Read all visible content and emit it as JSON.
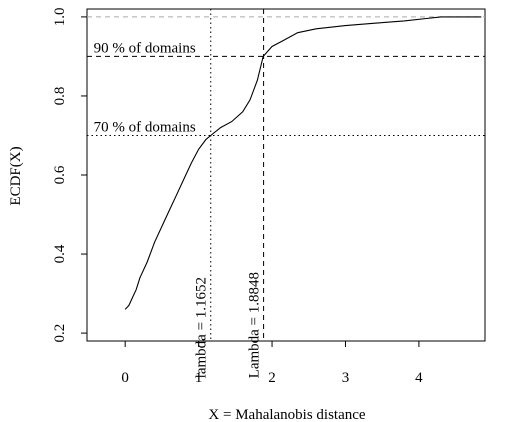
{
  "chart_data": {
    "type": "line",
    "xlabel": "X = Mahalanobis distance",
    "ylabel": "ECDF(X)",
    "xlim": [
      -0.52,
      4.9
    ],
    "ylim": [
      0.18,
      1.02
    ],
    "x_ticks": [
      0,
      1,
      2,
      3,
      4
    ],
    "x_tick_labels": [
      "0",
      "1",
      "2",
      "3",
      "4"
    ],
    "y_ticks": [
      0.2,
      0.4,
      0.6,
      0.8,
      1.0
    ],
    "y_tick_labels": [
      "0.2",
      "0.4",
      "0.6",
      "0.8",
      "1.0"
    ],
    "grid": false,
    "series": [
      {
        "points": [
          [
            0.0,
            0.26
          ],
          [
            0.05,
            0.27
          ],
          [
            0.1,
            0.29
          ],
          [
            0.15,
            0.31
          ],
          [
            0.2,
            0.34
          ],
          [
            0.3,
            0.38
          ],
          [
            0.4,
            0.43
          ],
          [
            0.5,
            0.47
          ],
          [
            0.6,
            0.51
          ],
          [
            0.7,
            0.55
          ],
          [
            0.8,
            0.59
          ],
          [
            0.9,
            0.63
          ],
          [
            1.0,
            0.665
          ],
          [
            1.1,
            0.69
          ],
          [
            1.1652,
            0.7
          ],
          [
            1.3,
            0.72
          ],
          [
            1.45,
            0.735
          ],
          [
            1.6,
            0.76
          ],
          [
            1.7,
            0.79
          ],
          [
            1.8,
            0.84
          ],
          [
            1.88,
            0.9
          ],
          [
            2.0,
            0.925
          ],
          [
            2.15,
            0.94
          ],
          [
            2.35,
            0.96
          ],
          [
            2.6,
            0.97
          ],
          [
            3.0,
            0.978
          ],
          [
            3.4,
            0.984
          ],
          [
            3.8,
            0.99
          ],
          [
            4.1,
            0.996
          ],
          [
            4.3,
            1.0
          ],
          [
            4.85,
            1.0
          ]
        ]
      }
    ],
    "reference_lines": {
      "horizontal": [
        {
          "y": 1.0,
          "style": "dashed",
          "color": "#aaaaaa"
        },
        {
          "y": 0.9,
          "style": "dashed",
          "color": "#000000"
        },
        {
          "y": 0.7,
          "style": "dotted",
          "color": "#000000"
        }
      ],
      "vertical": [
        {
          "x": 1.1652,
          "style": "dotted",
          "color": "#000000"
        },
        {
          "x": 1.8848,
          "style": "dashed",
          "color": "#000000"
        }
      ]
    },
    "annotations": [
      {
        "text": "90 % of domains",
        "anchor_x": -0.43,
        "anchor_y": 0.9
      },
      {
        "text": "70 % of domains",
        "anchor_x": -0.43,
        "anchor_y": 0.7
      },
      {
        "text": "lambda = 1.1652",
        "anchor_x": 1.1652,
        "anchor_y": 0.25,
        "rotation": "vertical"
      },
      {
        "text": "Lambda = 1.8848",
        "anchor_x": 1.8848,
        "anchor_y": 0.25,
        "rotation": "vertical"
      }
    ]
  }
}
